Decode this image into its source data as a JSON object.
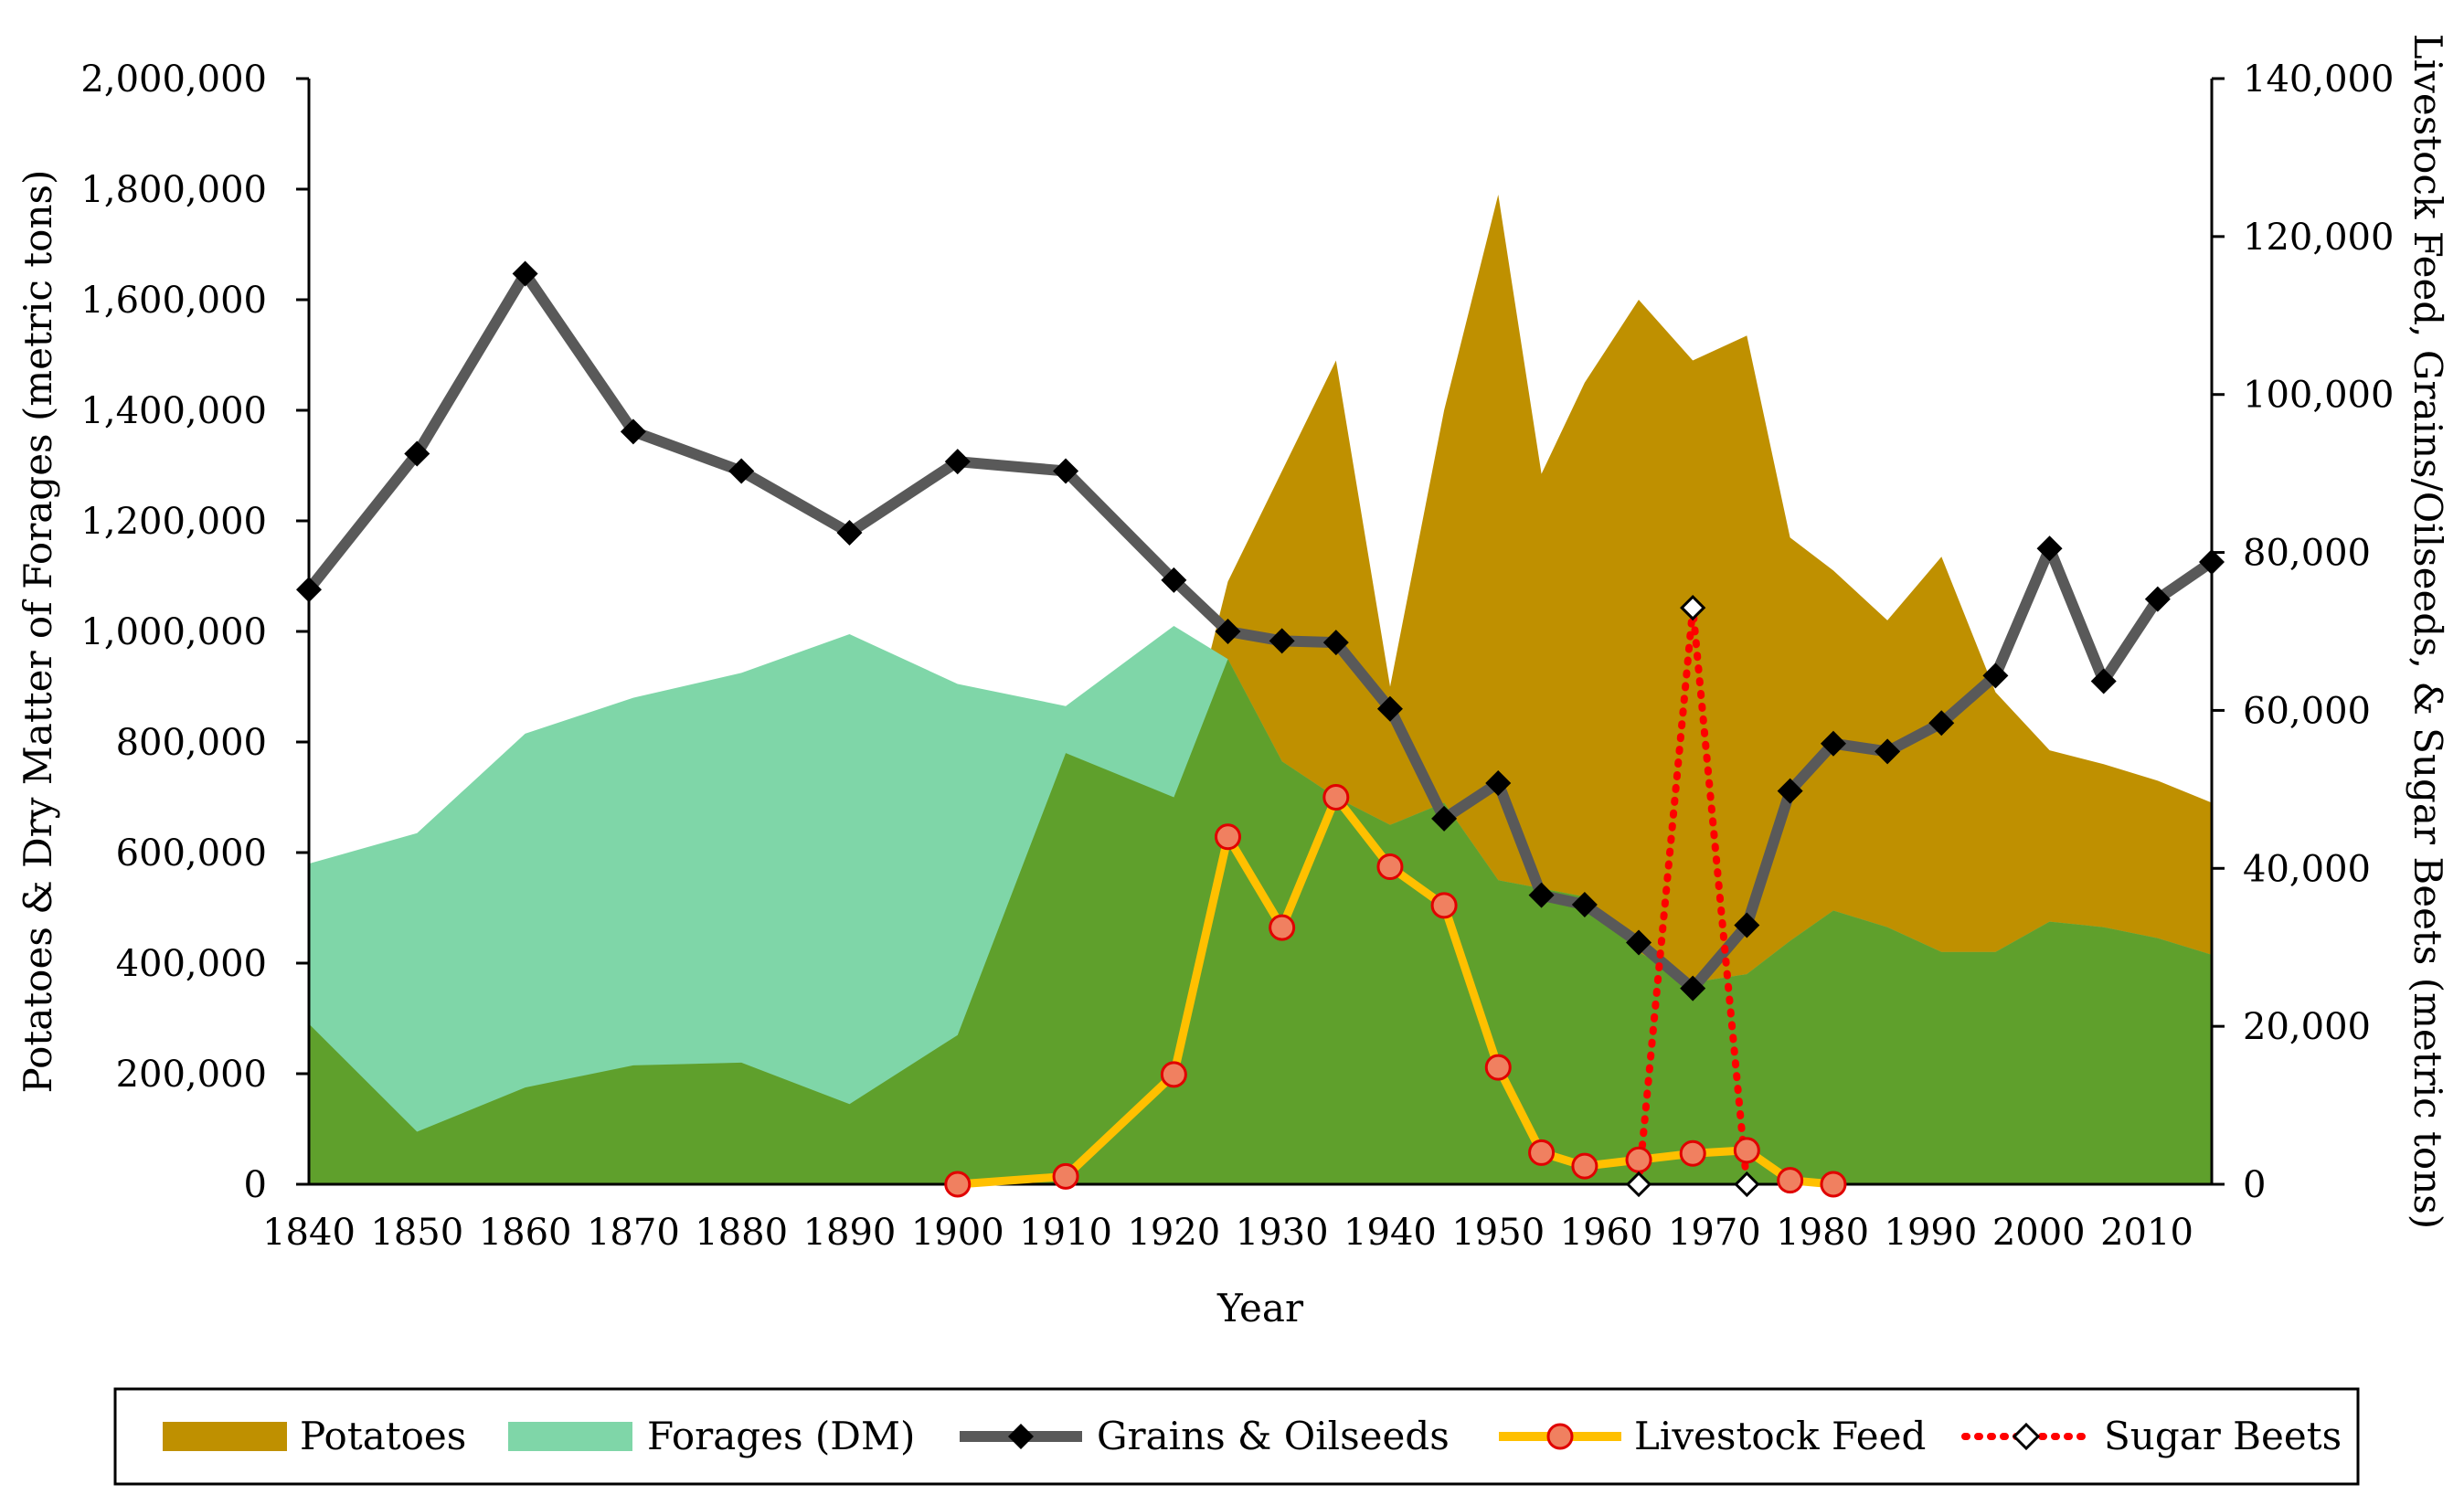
{
  "chart_data": {
    "type": "area",
    "title": "",
    "xlabel": "Year",
    "ylabel_left": "Potatoes & Dry Matter of Forages (metric tons)",
    "ylabel_right": "Livestock Feed, Grains/Oilseeds, & Sugar Beets (metric tons)",
    "xlim": [
      1840,
      2016
    ],
    "ylim_left": [
      0,
      2000000
    ],
    "ylim_right": [
      0,
      140000
    ],
    "x_ticks": [
      1840,
      1850,
      1860,
      1870,
      1880,
      1890,
      1900,
      1910,
      1920,
      1930,
      1940,
      1950,
      1960,
      1970,
      1980,
      1990,
      2000,
      2010
    ],
    "y_ticks_left": [
      0,
      200000,
      400000,
      600000,
      800000,
      1000000,
      1200000,
      1400000,
      1600000,
      1800000,
      2000000
    ],
    "y_tick_labels_left": [
      "0",
      "200,000",
      "400,000",
      "600,000",
      "800,000",
      "1,000,000",
      "1,200,000",
      "1,400,000",
      "1,600,000",
      "1,800,000",
      "2,000,000"
    ],
    "y_ticks_right": [
      0,
      20000,
      40000,
      60000,
      80000,
      100000,
      120000,
      140000
    ],
    "y_tick_labels_right": [
      "0",
      "20,000",
      "40,000",
      "60,000",
      "80,000",
      "100,000",
      "120,000",
      "140,000"
    ],
    "legend_position": "bottom",
    "series": [
      {
        "name": "Potatoes",
        "kind": "area",
        "axis": "left",
        "color": "#bf9000",
        "x": [
          1840,
          1850,
          1860,
          1870,
          1880,
          1890,
          1900,
          1910,
          1920,
          1925,
          1930,
          1935,
          1940,
          1945,
          1950,
          1954,
          1958,
          1963,
          1968,
          1973,
          1977,
          1981,
          1986,
          1991,
          1996,
          2001,
          2006,
          2011,
          2016
        ],
        "values": [
          290000,
          95000,
          175000,
          215000,
          220000,
          145000,
          270000,
          780000,
          700000,
          1090000,
          1290000,
          1490000,
          900000,
          1400000,
          1790000,
          1285000,
          1450000,
          1600000,
          1490000,
          1535000,
          1170000,
          1110000,
          1020000,
          1135000,
          890000,
          785000,
          760000,
          730000,
          690000
        ]
      },
      {
        "name": "Forages (DM)",
        "kind": "area",
        "axis": "left",
        "color": "#7fd6a8",
        "x": [
          1840,
          1850,
          1860,
          1870,
          1880,
          1890,
          1900,
          1910,
          1920,
          1925,
          1930,
          1935,
          1940,
          1945,
          1950,
          1954,
          1958,
          1963,
          1968,
          1973,
          1977,
          1981,
          1986,
          1991,
          1996,
          2001,
          2006,
          2011,
          2016
        ],
        "values": [
          580000,
          635000,
          815000,
          880000,
          925000,
          995000,
          905000,
          865000,
          1010000,
          950000,
          765000,
          700000,
          650000,
          690000,
          550000,
          535000,
          520000,
          420000,
          365000,
          380000,
          440000,
          495000,
          465000,
          420000,
          420000,
          475000,
          465000,
          445000,
          415000
        ]
      },
      {
        "name": "Grains & Oilseeds",
        "kind": "line",
        "axis": "right",
        "color": "#595959",
        "marker": "filled-diamond",
        "x": [
          1840,
          1850,
          1860,
          1870,
          1880,
          1890,
          1900,
          1910,
          1920,
          1925,
          1930,
          1935,
          1940,
          1945,
          1950,
          1954,
          1958,
          1963,
          1968,
          1973,
          1977,
          1981,
          1986,
          1991,
          1996,
          2001,
          2006,
          2011,
          2016
        ],
        "values": [
          75300,
          92500,
          115300,
          95300,
          90300,
          82500,
          91500,
          90300,
          76500,
          70000,
          68800,
          68600,
          60200,
          46300,
          50800,
          36600,
          35400,
          30600,
          24800,
          32800,
          49800,
          55800,
          54800,
          58400,
          64400,
          80500,
          63700,
          74100,
          78800
        ]
      },
      {
        "name": "Livestock Feed",
        "kind": "line",
        "axis": "right",
        "color": "#ffc000",
        "marker": "circle",
        "marker_color": "#e86a4a",
        "x": [
          1900,
          1910,
          1920,
          1925,
          1930,
          1935,
          1940,
          1945,
          1950,
          1954,
          1958,
          1963,
          1968,
          1973,
          1977,
          1981
        ],
        "values": [
          0,
          1000,
          13900,
          44000,
          32500,
          49000,
          40200,
          35300,
          14800,
          4000,
          2300,
          3100,
          3900,
          4300,
          500,
          0
        ]
      },
      {
        "name": "Sugar Beets",
        "kind": "line",
        "axis": "right",
        "color": "#ff0000",
        "style": "dotted",
        "marker": "open-diamond",
        "x": [
          1963,
          1968,
          1973
        ],
        "values": [
          0,
          73000,
          0
        ]
      }
    ]
  },
  "legend": {
    "items": [
      "Potatoes",
      "Forages (DM)",
      "Grains & Oilseeds",
      "Livestock Feed",
      "Sugar Beets"
    ]
  }
}
